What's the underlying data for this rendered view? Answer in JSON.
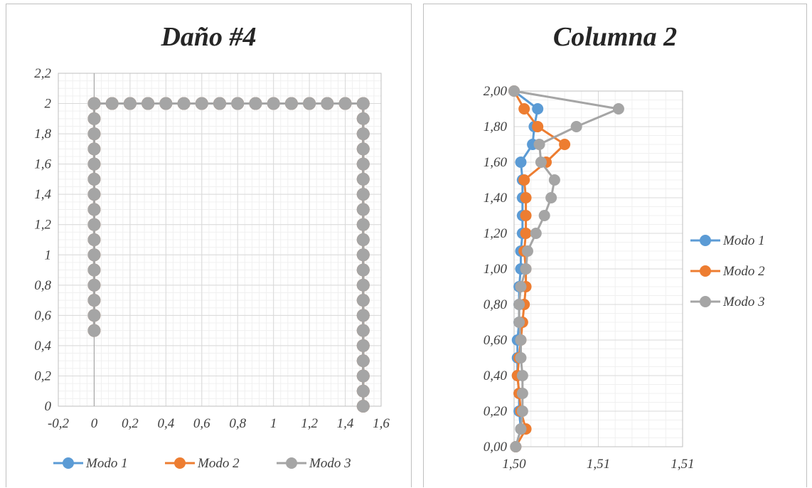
{
  "chart_data": [
    {
      "type": "scatter",
      "title": "Daño #4",
      "xlabel": "",
      "ylabel": "",
      "xlim": [
        -0.2,
        1.6
      ],
      "ylim": [
        0,
        2.2
      ],
      "x_ticks": [
        "-0,2",
        "0",
        "0,2",
        "0,4",
        "0,6",
        "0,8",
        "1",
        "1,2",
        "1,4",
        "1,6"
      ],
      "y_ticks": [
        "0",
        "0,2",
        "0,4",
        "0,6",
        "0,8",
        "1",
        "1,2",
        "1,4",
        "1,6",
        "1,8",
        "2",
        "2,2"
      ],
      "x_tick_values": [
        -0.2,
        0,
        0.2,
        0.4,
        0.6,
        0.8,
        1.0,
        1.2,
        1.4,
        1.6
      ],
      "y_tick_values": [
        0,
        0.2,
        0.4,
        0.6,
        0.8,
        1.0,
        1.2,
        1.4,
        1.6,
        1.8,
        2.0,
        2.2
      ],
      "grid": true,
      "legend": "bottom",
      "series": [
        {
          "name": "Modo 1",
          "color": "#5b9bd5",
          "points": [
            [
              0,
              0.5
            ],
            [
              0,
              0.6
            ],
            [
              0,
              0.7
            ],
            [
              0,
              0.8
            ],
            [
              0,
              0.9
            ],
            [
              0,
              1.0
            ],
            [
              0,
              1.1
            ],
            [
              0,
              1.2
            ],
            [
              0,
              1.3
            ],
            [
              0,
              1.4
            ],
            [
              0,
              1.5
            ],
            [
              0,
              1.6
            ],
            [
              0,
              1.7
            ],
            [
              0,
              1.8
            ],
            [
              0,
              1.9
            ],
            [
              0,
              2.0
            ],
            [
              0.1,
              2.0
            ],
            [
              0.2,
              2.0
            ],
            [
              0.3,
              2.0
            ],
            [
              0.4,
              2.0
            ],
            [
              0.5,
              2.0
            ],
            [
              0.6,
              2.0
            ],
            [
              0.7,
              2.0
            ],
            [
              0.8,
              2.0
            ],
            [
              0.9,
              2.0
            ],
            [
              1.0,
              2.0
            ],
            [
              1.1,
              2.0
            ],
            [
              1.2,
              2.0
            ],
            [
              1.3,
              2.0
            ],
            [
              1.4,
              2.0
            ],
            [
              1.5,
              2.0
            ],
            [
              1.5,
              1.9
            ],
            [
              1.5,
              1.8
            ],
            [
              1.5,
              1.7
            ],
            [
              1.5,
              1.6
            ],
            [
              1.5,
              1.5
            ],
            [
              1.5,
              1.4
            ],
            [
              1.5,
              1.3
            ],
            [
              1.5,
              1.2
            ],
            [
              1.5,
              1.1
            ],
            [
              1.5,
              1.0
            ],
            [
              1.5,
              0.9
            ],
            [
              1.5,
              0.8
            ],
            [
              1.5,
              0.7
            ],
            [
              1.5,
              0.6
            ],
            [
              1.5,
              0.5
            ],
            [
              1.5,
              0.4
            ],
            [
              1.5,
              0.3
            ],
            [
              1.5,
              0.2
            ],
            [
              1.5,
              0.1
            ],
            [
              1.5,
              0.0
            ]
          ]
        },
        {
          "name": "Modo 2",
          "color": "#ed7d31",
          "points": [
            [
              0,
              0.5
            ],
            [
              0,
              0.6
            ],
            [
              0,
              0.7
            ],
            [
              0,
              0.8
            ],
            [
              0,
              0.9
            ],
            [
              0,
              1.0
            ],
            [
              0,
              1.1
            ],
            [
              0,
              1.2
            ],
            [
              0,
              1.3
            ],
            [
              0,
              1.4
            ],
            [
              0,
              1.5
            ],
            [
              0,
              1.6
            ],
            [
              0,
              1.7
            ],
            [
              0,
              1.8
            ],
            [
              0,
              1.9
            ],
            [
              0,
              2.0
            ],
            [
              0.1,
              2.0
            ],
            [
              0.2,
              2.0
            ],
            [
              0.3,
              2.0
            ],
            [
              0.4,
              2.0
            ],
            [
              0.5,
              2.0
            ],
            [
              0.6,
              2.0
            ],
            [
              0.7,
              2.0
            ],
            [
              0.8,
              2.0
            ],
            [
              0.9,
              2.0
            ],
            [
              1.0,
              2.0
            ],
            [
              1.1,
              2.0
            ],
            [
              1.2,
              2.0
            ],
            [
              1.3,
              2.0
            ],
            [
              1.4,
              2.0
            ],
            [
              1.5,
              2.0
            ],
            [
              1.5,
              1.9
            ],
            [
              1.5,
              1.8
            ],
            [
              1.5,
              1.7
            ],
            [
              1.5,
              1.6
            ],
            [
              1.5,
              1.5
            ],
            [
              1.5,
              1.4
            ],
            [
              1.5,
              1.3
            ],
            [
              1.5,
              1.2
            ],
            [
              1.5,
              1.1
            ],
            [
              1.5,
              1.0
            ],
            [
              1.5,
              0.9
            ],
            [
              1.5,
              0.8
            ],
            [
              1.5,
              0.7
            ],
            [
              1.5,
              0.6
            ],
            [
              1.5,
              0.5
            ],
            [
              1.5,
              0.4
            ],
            [
              1.5,
              0.3
            ],
            [
              1.5,
              0.2
            ],
            [
              1.5,
              0.1
            ],
            [
              1.5,
              0.0
            ]
          ]
        },
        {
          "name": "Modo 3",
          "color": "#a5a5a5",
          "points": [
            [
              0,
              0.5
            ],
            [
              0,
              0.6
            ],
            [
              0,
              0.7
            ],
            [
              0,
              0.8
            ],
            [
              0,
              0.9
            ],
            [
              0,
              1.0
            ],
            [
              0,
              1.1
            ],
            [
              0,
              1.2
            ],
            [
              0,
              1.3
            ],
            [
              0,
              1.4
            ],
            [
              0,
              1.5
            ],
            [
              0,
              1.6
            ],
            [
              0,
              1.7
            ],
            [
              0,
              1.8
            ],
            [
              0,
              1.9
            ],
            [
              0,
              2.0
            ],
            [
              0.1,
              2.0
            ],
            [
              0.2,
              2.0
            ],
            [
              0.3,
              2.0
            ],
            [
              0.4,
              2.0
            ],
            [
              0.5,
              2.0
            ],
            [
              0.6,
              2.0
            ],
            [
              0.7,
              2.0
            ],
            [
              0.8,
              2.0
            ],
            [
              0.9,
              2.0
            ],
            [
              1.0,
              2.0
            ],
            [
              1.1,
              2.0
            ],
            [
              1.2,
              2.0
            ],
            [
              1.3,
              2.0
            ],
            [
              1.4,
              2.0
            ],
            [
              1.5,
              2.0
            ],
            [
              1.5,
              1.9
            ],
            [
              1.5,
              1.8
            ],
            [
              1.5,
              1.7
            ],
            [
              1.5,
              1.6
            ],
            [
              1.5,
              1.5
            ],
            [
              1.5,
              1.4
            ],
            [
              1.5,
              1.3
            ],
            [
              1.5,
              1.2
            ],
            [
              1.5,
              1.1
            ],
            [
              1.5,
              1.0
            ],
            [
              1.5,
              0.9
            ],
            [
              1.5,
              0.8
            ],
            [
              1.5,
              0.7
            ],
            [
              1.5,
              0.6
            ],
            [
              1.5,
              0.5
            ],
            [
              1.5,
              0.4
            ],
            [
              1.5,
              0.3
            ],
            [
              1.5,
              0.2
            ],
            [
              1.5,
              0.1
            ],
            [
              1.5,
              0.0
            ]
          ]
        }
      ]
    },
    {
      "type": "scatter",
      "title": "Columna 2",
      "xlabel": "",
      "ylabel": "",
      "xlim": [
        1.5,
        1.51
      ],
      "ylim": [
        0,
        2.0
      ],
      "x_ticks": [
        "1,50",
        "1,51",
        "1,51"
      ],
      "x_tick_values": [
        1.5,
        1.505,
        1.51
      ],
      "y_ticks": [
        "0,00",
        "0,20",
        "0,40",
        "0,60",
        "0,80",
        "1,00",
        "1,20",
        "1,40",
        "1,60",
        "1,80",
        "2,00"
      ],
      "y_tick_values": [
        0,
        0.2,
        0.4,
        0.6,
        0.8,
        1.0,
        1.2,
        1.4,
        1.6,
        1.8,
        2.0
      ],
      "grid": true,
      "legend": "right",
      "series": [
        {
          "name": "Modo 1",
          "color": "#5b9bd5",
          "points": [
            [
              1.5,
              2.0
            ],
            [
              1.5014,
              1.9
            ],
            [
              1.5012,
              1.8
            ],
            [
              1.5011,
              1.7
            ],
            [
              1.5004,
              1.6
            ],
            [
              1.5005,
              1.5
            ],
            [
              1.5005,
              1.4
            ],
            [
              1.5005,
              1.3
            ],
            [
              1.5005,
              1.2
            ],
            [
              1.5004,
              1.1
            ],
            [
              1.5004,
              1.0
            ],
            [
              1.5003,
              0.9
            ],
            [
              1.5003,
              0.8
            ],
            [
              1.5003,
              0.7
            ],
            [
              1.5002,
              0.6
            ],
            [
              1.5002,
              0.5
            ],
            [
              1.5002,
              0.4
            ],
            [
              1.5003,
              0.3
            ],
            [
              1.5003,
              0.2
            ],
            [
              1.5004,
              0.1
            ],
            [
              1.5001,
              0.0
            ]
          ]
        },
        {
          "name": "Modo 2",
          "color": "#ed7d31",
          "points": [
            [
              1.5,
              2.0
            ],
            [
              1.5006,
              1.9
            ],
            [
              1.5014,
              1.8
            ],
            [
              1.503,
              1.7
            ],
            [
              1.5019,
              1.6
            ],
            [
              1.5006,
              1.5
            ],
            [
              1.5007,
              1.4
            ],
            [
              1.5007,
              1.3
            ],
            [
              1.5007,
              1.2
            ],
            [
              1.5006,
              1.1
            ],
            [
              1.5007,
              1.0
            ],
            [
              1.5007,
              0.9
            ],
            [
              1.5006,
              0.8
            ],
            [
              1.5005,
              0.7
            ],
            [
              1.5004,
              0.6
            ],
            [
              1.5003,
              0.5
            ],
            [
              1.5002,
              0.4
            ],
            [
              1.5003,
              0.3
            ],
            [
              1.5004,
              0.2
            ],
            [
              1.5007,
              0.1
            ],
            [
              1.5001,
              0.0
            ]
          ]
        },
        {
          "name": "Modo 3",
          "color": "#a5a5a5",
          "points": [
            [
              1.5,
              2.0
            ],
            [
              1.5062,
              1.9
            ],
            [
              1.5037,
              1.8
            ],
            [
              1.5015,
              1.7
            ],
            [
              1.5016,
              1.6
            ],
            [
              1.5024,
              1.5
            ],
            [
              1.5022,
              1.4
            ],
            [
              1.5018,
              1.3
            ],
            [
              1.5013,
              1.2
            ],
            [
              1.5008,
              1.1
            ],
            [
              1.5007,
              1.0
            ],
            [
              1.5004,
              0.9
            ],
            [
              1.5003,
              0.8
            ],
            [
              1.5003,
              0.7
            ],
            [
              1.5004,
              0.6
            ],
            [
              1.5004,
              0.5
            ],
            [
              1.5005,
              0.4
            ],
            [
              1.5005,
              0.3
            ],
            [
              1.5005,
              0.2
            ],
            [
              1.5004,
              0.1
            ],
            [
              1.5001,
              0.0
            ]
          ]
        }
      ]
    }
  ]
}
